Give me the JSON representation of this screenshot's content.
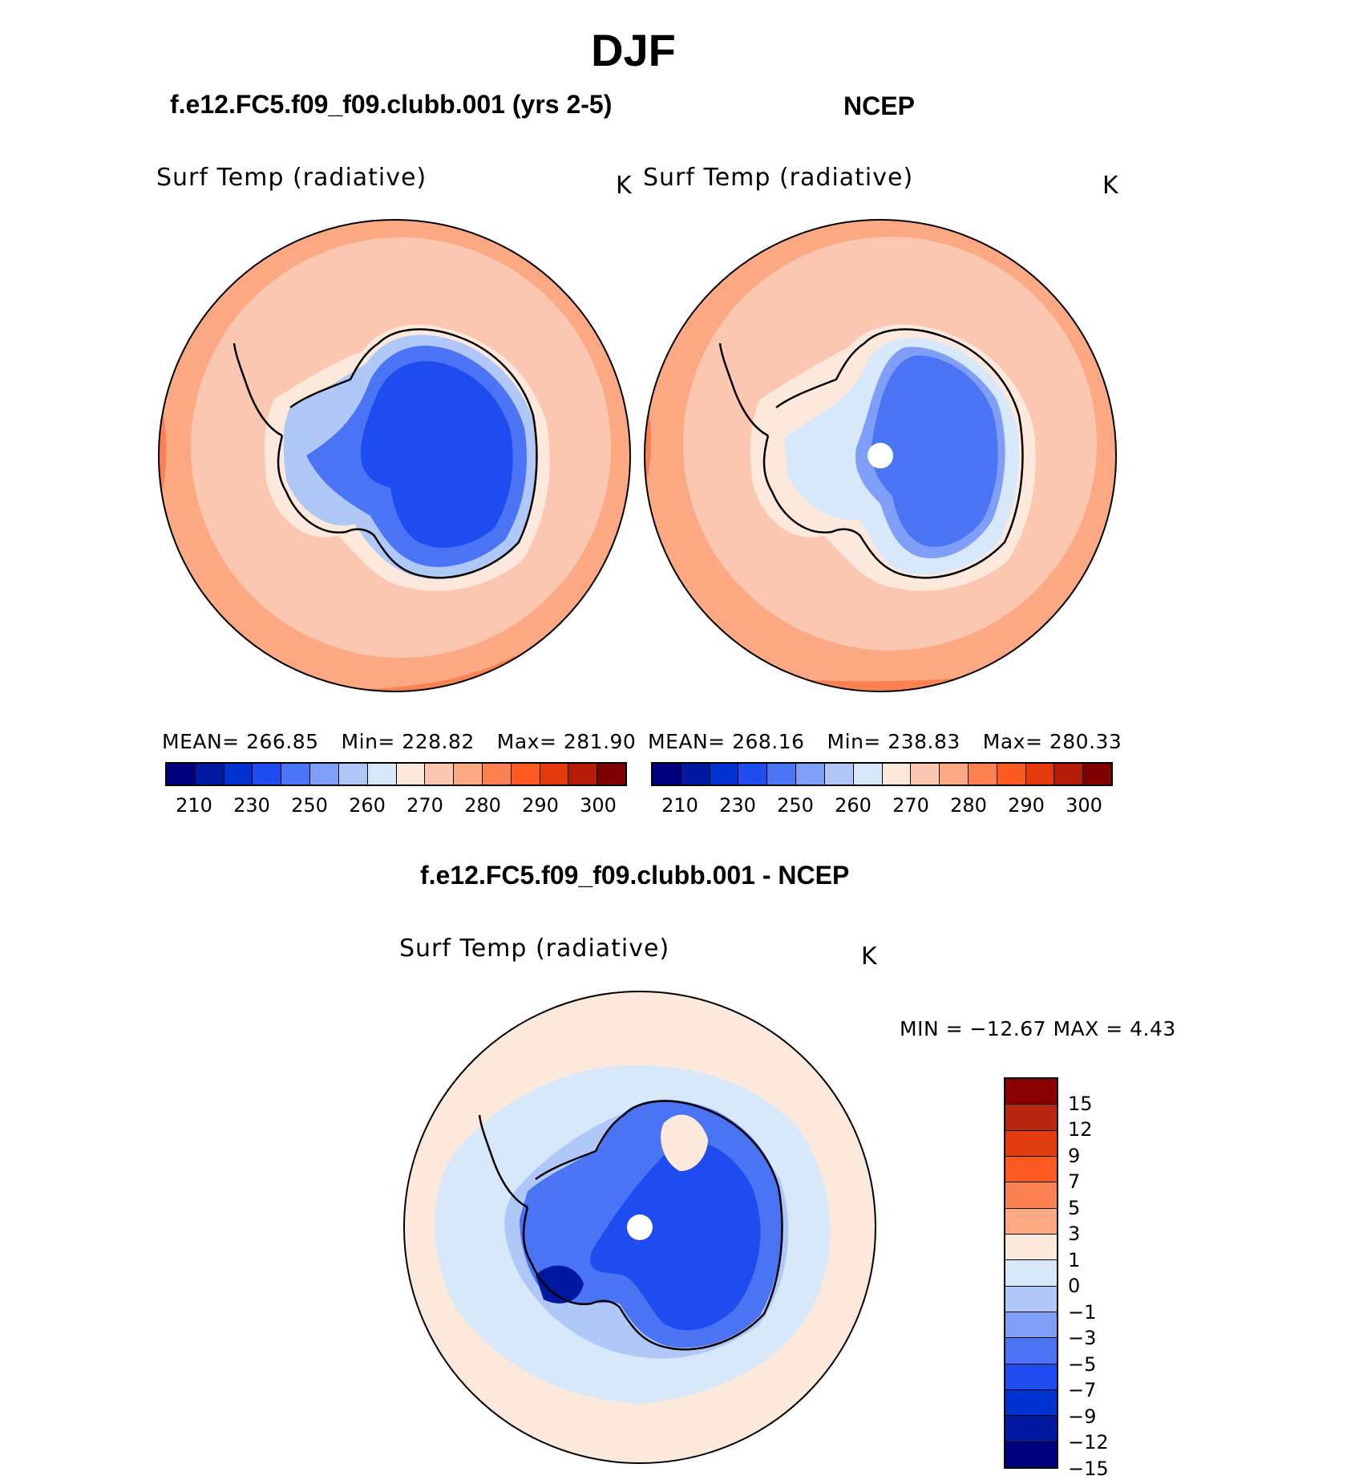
{
  "figure": {
    "title": "DJF",
    "left_panel": {
      "title": "f.e12.FC5.f09_f09.clubb.001 (yrs 2-5)",
      "variable": "Surf Temp (radiative)",
      "units": "K",
      "stats": {
        "mean": "MEAN=  266.85",
        "min": "Min=  228.82",
        "max": "Max=  281.90"
      }
    },
    "right_panel": {
      "title": "NCEP",
      "variable": "Surf Temp (radiative)",
      "units": "K",
      "stats": {
        "mean": "MEAN=  268.16",
        "min": "Min=  238.83",
        "max": "Max=  280.33"
      }
    },
    "diff_panel": {
      "title": "f.e12.FC5.f09_f09.clubb.001 - NCEP",
      "variable": "Surf Temp (radiative)",
      "units": "K",
      "stats": "MIN = −12.67  MAX =    4.43"
    }
  },
  "colorbar_abs": {
    "colors": [
      "#00007f",
      "#0019a0",
      "#0032d0",
      "#1e4cf0",
      "#4a74f4",
      "#7e9ef7",
      "#b0c8f8",
      "#d7e8fb",
      "#fde9dc",
      "#fcc7b0",
      "#fca883",
      "#fb8150",
      "#fc5a22",
      "#e23a0c",
      "#b41c08",
      "#7e0000"
    ],
    "ticks": [
      "210",
      "230",
      "250",
      "260",
      "270",
      "280",
      "290",
      "300"
    ]
  },
  "colorbar_diff": {
    "colors_top_to_bottom": [
      "#880000",
      "#b82810",
      "#e03c10",
      "#fc5a22",
      "#fb8150",
      "#fca883",
      "#fde9dc",
      "#d7e8fb",
      "#b0c8f8",
      "#7e9ef7",
      "#4a74f4",
      "#1e4cf0",
      "#0032d0",
      "#0019a0",
      "#00007f"
    ],
    "ticks_top_to_bottom": [
      "15",
      "12",
      "9",
      "7",
      "5",
      "3",
      "1",
      "0",
      "−1",
      "−3",
      "−5",
      "−7",
      "−9",
      "−12",
      "−15"
    ]
  },
  "chart_data": {
    "type": "map",
    "projection": "south polar stereographic",
    "season": "DJF",
    "fields": [
      {
        "name": "f.e12.FC5.f09_f09.clubb.001 (yrs 2-5)",
        "mean": 266.85,
        "min": 228.82,
        "max": 281.9,
        "units": "K"
      },
      {
        "name": "NCEP",
        "mean": 268.16,
        "min": 238.83,
        "max": 280.33,
        "units": "K"
      },
      {
        "name": "f.e12.FC5.f09_f09.clubb.001 - NCEP",
        "min": -12.67,
        "max": 4.43,
        "units": "K"
      }
    ],
    "abs_levels": [
      210,
      230,
      250,
      260,
      270,
      280,
      290,
      300
    ],
    "diff_levels": [
      -15,
      -12,
      -9,
      -7,
      -5,
      -3,
      -1,
      0,
      1,
      3,
      5,
      7,
      9,
      12,
      15
    ]
  }
}
